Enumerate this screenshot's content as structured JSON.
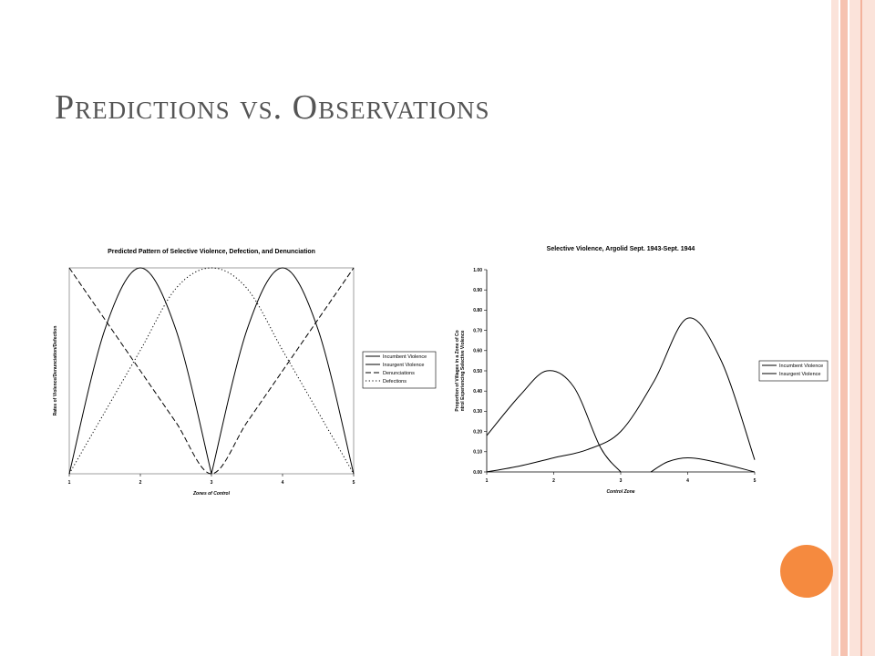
{
  "slide": {
    "title": "Predictions vs. Observations",
    "colors": {
      "stripe_light": "#fbe3da",
      "stripe_mid": "#f6c2b0",
      "accent_circle": "#f58a3f"
    }
  },
  "chart_data": [
    {
      "type": "line",
      "title": "Predicted Pattern of Selective Violence, Defection, and Denunciation",
      "xlabel": "Zones of Control",
      "ylabel": "Rates of Violence/Denunciation/Defection",
      "xlim": [
        1,
        5
      ],
      "ylim": [
        0,
        1
      ],
      "x_ticks": [
        "1",
        "2",
        "3",
        "4",
        "5"
      ],
      "legend": "right",
      "series": [
        {
          "name": "Incumbent Violence",
          "style": "solid",
          "x": [
            1,
            1.5,
            2,
            2.5,
            3
          ],
          "y": [
            0,
            0.7,
            1,
            0.7,
            0
          ]
        },
        {
          "name": "Insurgent Violence",
          "style": "solid",
          "x": [
            3,
            3.5,
            4,
            4.5,
            5
          ],
          "y": [
            0,
            0.7,
            1,
            0.7,
            0
          ]
        },
        {
          "name": "Denunciations",
          "style": "dashed",
          "x": [
            1,
            1.5,
            2,
            2.5,
            3,
            3.5,
            4,
            4.5,
            5
          ],
          "y": [
            1,
            0.75,
            0.5,
            0.25,
            0,
            0.25,
            0.5,
            0.75,
            1
          ]
        },
        {
          "name": "Defections",
          "style": "dotted",
          "x": [
            1,
            1.5,
            2,
            2.5,
            3,
            3.5,
            4,
            4.5,
            5
          ],
          "y": [
            0,
            0.3,
            0.6,
            0.9,
            1,
            0.9,
            0.6,
            0.3,
            0
          ]
        }
      ]
    },
    {
      "type": "line",
      "title": "Selective Violence, Argolid Sept. 1943-Sept. 1944",
      "xlabel": "Control Zone",
      "ylabel": "Proportion of Villages in a Zone of Control Experiencing Selective Violence",
      "xlim": [
        1,
        5
      ],
      "ylim": [
        0,
        1
      ],
      "x_ticks": [
        "1",
        "2",
        "3",
        "4",
        "5"
      ],
      "y_ticks": [
        "0.00",
        "0.10",
        "0.20",
        "0.30",
        "0.40",
        "0.50",
        "0.60",
        "0.70",
        "0.80",
        "0.90",
        "1.00"
      ],
      "legend": "right",
      "series": [
        {
          "name": "Incumbent Violence",
          "style": "solid",
          "x": [
            1,
            1.5,
            1.9,
            2.3,
            2.7,
            3
          ],
          "y": [
            0.18,
            0.38,
            0.5,
            0.42,
            0.12,
            0
          ]
        },
        {
          "name": "Insurgent Violence",
          "style": "solid",
          "x": [
            1,
            1.5,
            2,
            2.5,
            3,
            3.5,
            4,
            4.5,
            5
          ],
          "y": [
            0,
            0.03,
            0.07,
            0.11,
            0.2,
            0.45,
            0.76,
            0.55,
            0.06
          ]
        },
        {
          "name": "Incumbent Violence",
          "style": "solid",
          "in_legend": false,
          "x": [
            3.45,
            3.7,
            4,
            4.4,
            5
          ],
          "y": [
            0,
            0.05,
            0.07,
            0.05,
            0
          ]
        }
      ]
    }
  ]
}
